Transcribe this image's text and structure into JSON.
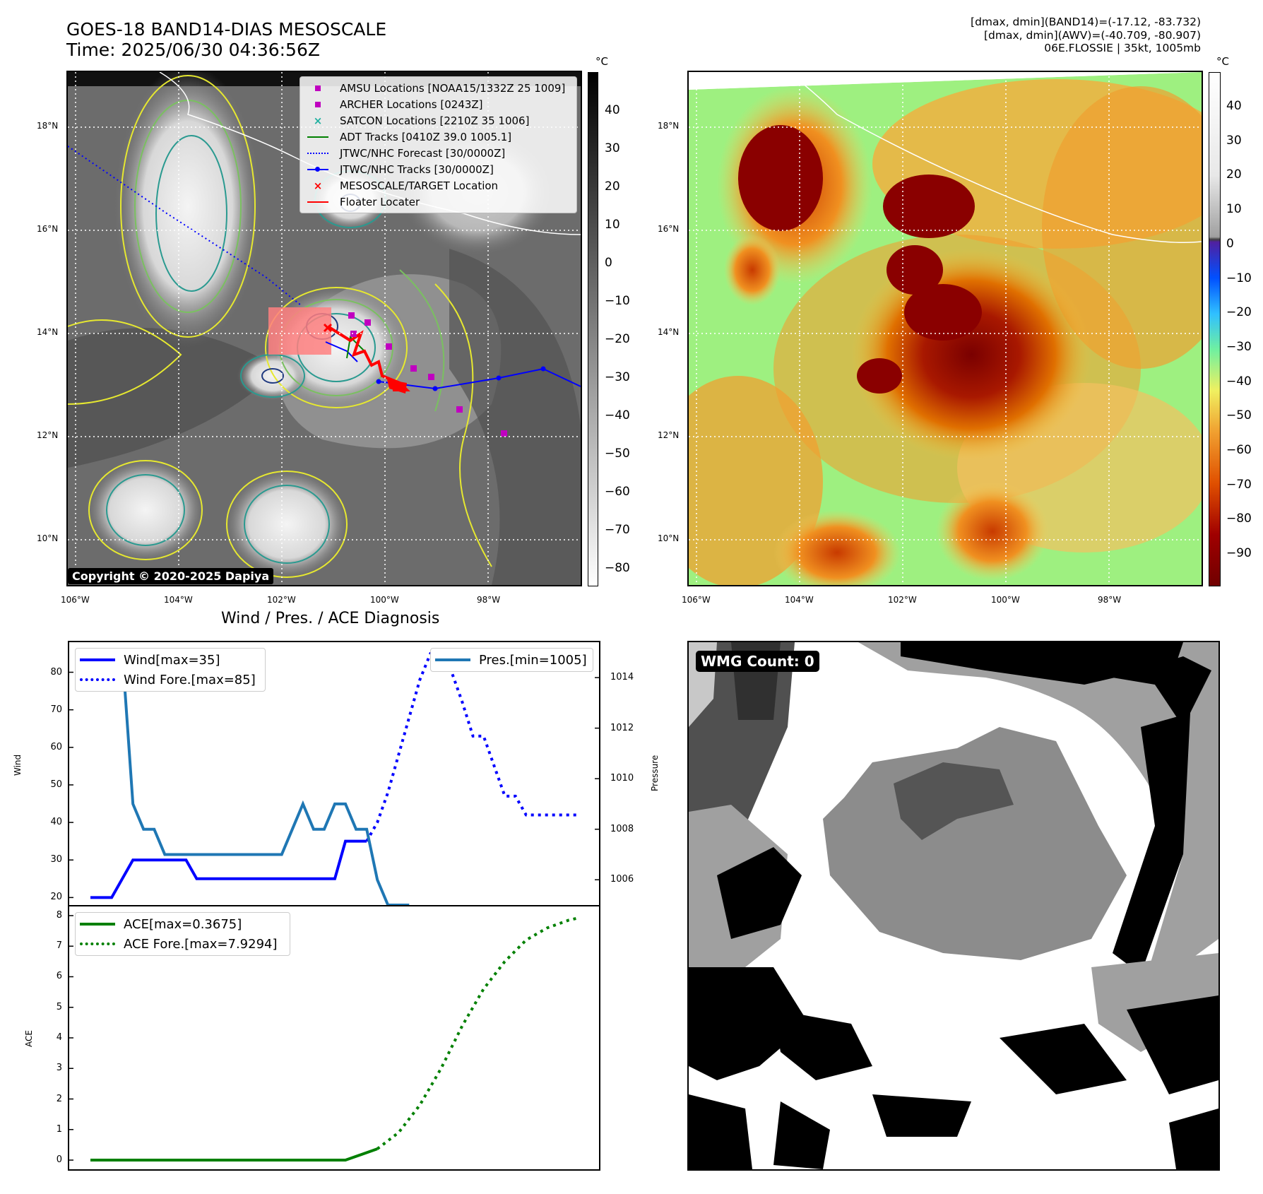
{
  "header": {
    "title_line1": "GOES-18 BAND14-DIAS MESOSCALE",
    "title_line2": "Time: 2025/06/30 04:36:56Z",
    "info_line1": "[dmax, dmin](BAND14)=(-17.12, -83.732)",
    "info_line2": "[dmax, dmin](AWV)=(-40.709, -80.907)",
    "info_line3": "06E.FLOSSIE | 35kt, 1005mb"
  },
  "map_axes": {
    "lat_labels": [
      "18°N",
      "16°N",
      "14°N",
      "12°N",
      "10°N"
    ],
    "lon_labels": [
      "106°W",
      "104°W",
      "102°W",
      "100°W",
      "98°W"
    ]
  },
  "colorbar_left": {
    "unit": "°C",
    "ticks": [
      "40",
      "30",
      "20",
      "10",
      "0",
      "−10",
      "−20",
      "−30",
      "−40",
      "−50",
      "−60",
      "−70",
      "−80"
    ]
  },
  "colorbar_right": {
    "unit": "°C",
    "ticks": [
      "40",
      "30",
      "20",
      "10",
      "0",
      "−10",
      "−20",
      "−30",
      "−40",
      "−50",
      "−60",
      "−70",
      "−80",
      "−90"
    ]
  },
  "map_legend": {
    "items": [
      {
        "label": "AMSU Locations [NOAA15/1332Z 25 1009]",
        "symbol": "square",
        "color": "#c000c0"
      },
      {
        "label": "ARCHER Locations [0243Z]",
        "symbol": "square",
        "color": "#c000c0"
      },
      {
        "label": "SATCON Locations [2210Z 35 1006]",
        "symbol": "x",
        "color": "#20b0a0"
      },
      {
        "label": "ADT Tracks [0410Z 39.0 1005.1]",
        "symbol": "line",
        "color": "#008000"
      },
      {
        "label": "JTWC/NHC Forecast [30/0000Z]",
        "symbol": "dotted",
        "color": "#0000ff"
      },
      {
        "label": "JTWC/NHC Tracks [30/0000Z]",
        "symbol": "line-dot",
        "color": "#0000ff"
      },
      {
        "label": "MESOSCALE/TARGET Location",
        "symbol": "x",
        "color": "#ff0000"
      },
      {
        "label": "Floater Locater",
        "symbol": "line",
        "color": "#ff0000"
      }
    ]
  },
  "copyright": "Copyright © 2020-2025 Dapiya",
  "wmg_label": "WMG Count: 0",
  "diagnosis_title": "Wind / Pres. / ACE Diagnosis",
  "chart_data": [
    {
      "type": "line",
      "x": [
        0,
        1,
        2,
        3,
        4,
        5,
        6,
        7,
        8,
        9,
        10,
        11,
        12,
        13,
        14,
        15,
        16,
        17,
        18,
        19,
        20,
        21,
        22,
        23,
        24,
        25,
        26,
        27,
        28,
        29,
        30,
        31,
        32,
        33,
        34,
        35,
        36,
        37,
        38,
        39,
        40,
        41,
        42,
        43,
        44,
        45,
        46
      ],
      "ylabel": "Wind",
      "ylim": [
        18,
        88
      ],
      "yticks": [
        20,
        30,
        40,
        50,
        60,
        70,
        80
      ],
      "y2label": "Pressure",
      "y2lim": [
        1005.0,
        1015.4
      ],
      "y2ticks": [
        1006,
        1008,
        1010,
        1012,
        1014
      ],
      "series": [
        {
          "name": "Wind[max=35]",
          "axis": "left",
          "color": "#0000ff",
          "style": "solid",
          "values": [
            20,
            20,
            20,
            25,
            30,
            30,
            30,
            30,
            30,
            30,
            25,
            25,
            25,
            25,
            25,
            25,
            25,
            25,
            25,
            25,
            25,
            25,
            25,
            25,
            35,
            35,
            35,
            null,
            null,
            null,
            null,
            null,
            null,
            null,
            null,
            null,
            null,
            null,
            null,
            null,
            null,
            null,
            null,
            null,
            null,
            null,
            null
          ]
        },
        {
          "name": "Wind Fore.[max=85]",
          "axis": "left",
          "color": "#0000ff",
          "style": "dotted",
          "values": [
            null,
            null,
            null,
            null,
            null,
            null,
            null,
            null,
            null,
            null,
            null,
            null,
            null,
            null,
            null,
            null,
            null,
            null,
            null,
            null,
            null,
            null,
            null,
            null,
            null,
            null,
            35,
            40,
            48,
            58,
            68,
            78,
            85,
            85,
            80,
            72,
            63,
            63,
            55,
            47,
            47,
            42,
            42,
            42,
            42,
            42,
            42
          ]
        },
        {
          "name": "Pres.[min=1005]",
          "axis": "right",
          "color": "#1f77b4",
          "style": "solid",
          "values": [
            1015,
            1015,
            1015,
            1015,
            1009,
            1008,
            1008,
            1007,
            1007,
            1007,
            1007,
            1007,
            1007,
            1007,
            1007,
            1007,
            1007,
            1007,
            1007,
            1008,
            1009,
            1008,
            1008,
            1009,
            1009,
            1008,
            1008,
            1006,
            1005,
            1005,
            1005,
            null,
            null,
            null,
            null,
            null,
            null,
            null,
            null,
            null,
            null,
            null,
            null,
            null,
            null,
            null,
            null
          ]
        }
      ]
    },
    {
      "type": "line",
      "ylabel": "ACE",
      "ylim": [
        -0.3,
        8.3
      ],
      "yticks": [
        0,
        1,
        2,
        3,
        4,
        5,
        6,
        7,
        8
      ],
      "series": [
        {
          "name": "ACE[max=0.3675]",
          "color": "#008000",
          "style": "solid",
          "x": [
            0,
            24,
            27
          ],
          "values": [
            0,
            0,
            0.3675
          ]
        },
        {
          "name": "ACE Fore.[max=7.9294]",
          "color": "#008000",
          "style": "dotted",
          "x": [
            27,
            29,
            31,
            33,
            35,
            37,
            39,
            41,
            43,
            45,
            46
          ],
          "values": [
            0.3675,
            0.9,
            1.8,
            3.0,
            4.4,
            5.6,
            6.5,
            7.2,
            7.6,
            7.85,
            7.93
          ]
        }
      ]
    }
  ]
}
